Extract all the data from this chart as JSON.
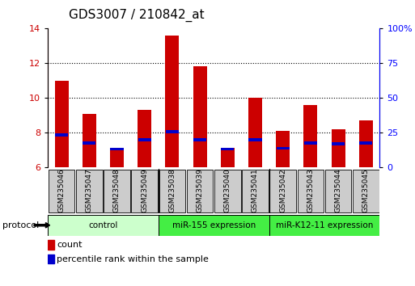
{
  "title": "GDS3007 / 210842_at",
  "samples": [
    "GSM235046",
    "GSM235047",
    "GSM235048",
    "GSM235049",
    "GSM235038",
    "GSM235039",
    "GSM235040",
    "GSM235041",
    "GSM235042",
    "GSM235043",
    "GSM235044",
    "GSM235045"
  ],
  "red_values": [
    11.0,
    9.1,
    7.1,
    9.3,
    13.6,
    11.85,
    7.1,
    10.0,
    8.1,
    9.6,
    8.2,
    8.7
  ],
  "blue_values": [
    7.85,
    7.4,
    7.05,
    7.6,
    8.05,
    7.6,
    7.05,
    7.6,
    7.1,
    7.4,
    7.35,
    7.4
  ],
  "bar_bottom": 6.0,
  "ylim_left": [
    6,
    14
  ],
  "ylim_right": [
    0,
    100
  ],
  "yticks_left": [
    6,
    8,
    10,
    12,
    14
  ],
  "yticks_right": [
    0,
    25,
    50,
    75,
    100
  ],
  "yticklabels_right": [
    "0",
    "25",
    "50",
    "75",
    "100%"
  ],
  "red_color": "#cc0000",
  "blue_color": "#0000cc",
  "bar_width": 0.5,
  "blue_bar_height": 0.18,
  "group_labels": [
    "control",
    "miR-155 expression",
    "miR-K12-11 expression"
  ],
  "group_ranges": [
    [
      0,
      3
    ],
    [
      4,
      7
    ],
    [
      8,
      11
    ]
  ],
  "group_colors": [
    "#ccffcc",
    "#44ee44",
    "#44ee44"
  ],
  "group_border_colors": [
    "#aaddaa",
    "#22cc22",
    "#22cc22"
  ],
  "tick_box_color": "#cccccc",
  "protocol_label": "protocol",
  "title_fontsize": 11,
  "tick_label_fontsize": 6.5,
  "legend_fontsize": 8
}
